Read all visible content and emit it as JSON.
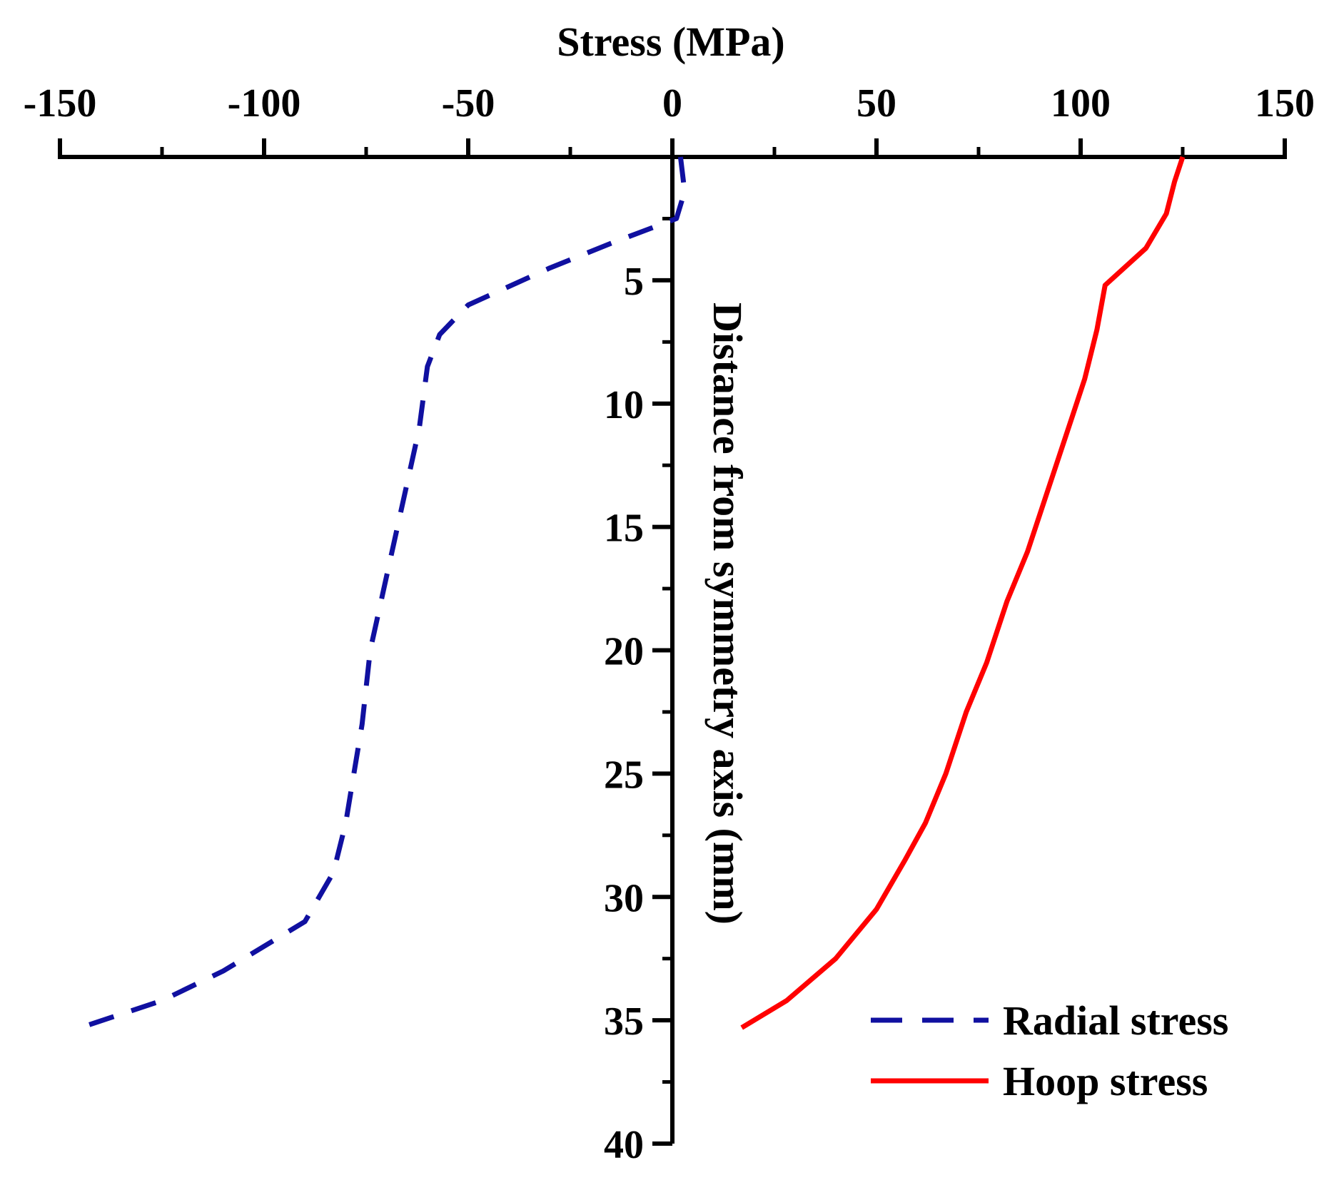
{
  "chart_data": {
    "type": "line",
    "xlabel": "Stress  (MPa)",
    "ylabel": "Distance from symmetry axis  (mm)",
    "xlim": [
      -150,
      150
    ],
    "ylim": [
      0,
      40
    ],
    "x_ticks": [
      -150,
      -100,
      -50,
      0,
      50,
      100,
      150
    ],
    "x_tick_labels": [
      "-150",
      "-100",
      "-50",
      "0",
      "50",
      "100",
      "150"
    ],
    "y_ticks": [
      5,
      10,
      15,
      20,
      25,
      30,
      35,
      40
    ],
    "y_tick_labels": [
      "5",
      "10",
      "15",
      "20",
      "25",
      "30",
      "35",
      "40"
    ],
    "y_inverted": true,
    "x_axis_position": "top",
    "y_axis_at_x": 0,
    "legend_position": "bottom-right",
    "series": [
      {
        "name": "Radial stress",
        "color": "#1010a0",
        "style": "dashed",
        "points": [
          [
            2,
            0
          ],
          [
            3,
            1.4
          ],
          [
            1,
            2.5
          ],
          [
            -15,
            3.5
          ],
          [
            -30,
            4.5
          ],
          [
            -50,
            6.0
          ],
          [
            -57,
            7.2
          ],
          [
            -60,
            8.5
          ],
          [
            -62,
            11
          ],
          [
            -66,
            14
          ],
          [
            -70,
            17
          ],
          [
            -74,
            20
          ],
          [
            -76,
            23
          ],
          [
            -78,
            25
          ],
          [
            -80,
            27
          ],
          [
            -83,
            29
          ],
          [
            -90,
            31
          ],
          [
            -110,
            33
          ],
          [
            -125,
            34.2
          ],
          [
            -145,
            35.3
          ]
        ]
      },
      {
        "name": "Hoop stress",
        "color": "#ff0000",
        "style": "solid",
        "points": [
          [
            125,
            0
          ],
          [
            123,
            1.0
          ],
          [
            121,
            2.3
          ],
          [
            116,
            3.7
          ],
          [
            106,
            5.2
          ],
          [
            104,
            7.0
          ],
          [
            101,
            9.0
          ],
          [
            98,
            10.5
          ],
          [
            92,
            13.5
          ],
          [
            87,
            16.0
          ],
          [
            82,
            18.0
          ],
          [
            77,
            20.5
          ],
          [
            72,
            22.5
          ],
          [
            67,
            25
          ],
          [
            62,
            27
          ],
          [
            57,
            28.5
          ],
          [
            50,
            30.5
          ],
          [
            40,
            32.5
          ],
          [
            28,
            34.2
          ],
          [
            17,
            35.3
          ]
        ]
      }
    ]
  }
}
